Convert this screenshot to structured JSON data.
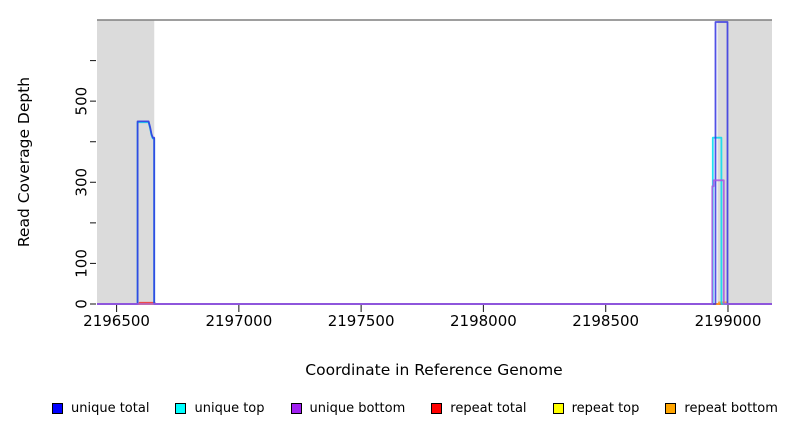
{
  "figure": {
    "background": "#ffffff",
    "band_color": "#DBDBDB",
    "border_color": "#7F7F7F",
    "tick_color": "#262626"
  },
  "chart_data": {
    "type": "line",
    "step": true,
    "title": "",
    "xlabel": "Coordinate in Reference Genome",
    "ylabel": "Read Coverage Depth",
    "xlim": [
      2196420,
      2199180
    ],
    "ylim": [
      0,
      700
    ],
    "grid": false,
    "x_ticks": [
      {
        "value": 2196500,
        "label": "2196500"
      },
      {
        "value": 2197000,
        "label": "2197000"
      },
      {
        "value": 2197500,
        "label": "2197500"
      },
      {
        "value": 2198000,
        "label": "2198000"
      },
      {
        "value": 2198500,
        "label": "2198500"
      },
      {
        "value": 2199000,
        "label": "2199000"
      }
    ],
    "y_ticks": [
      {
        "value": 0,
        "label": "0"
      },
      {
        "value": 100,
        "label": "100"
      },
      {
        "value": 200,
        "label": ""
      },
      {
        "value": 300,
        "label": "300"
      },
      {
        "value": 400,
        "label": ""
      },
      {
        "value": 500,
        "label": "500"
      },
      {
        "value": 600,
        "label": ""
      }
    ],
    "shaded_regions": [
      {
        "from": 2196420,
        "to": 2196654
      },
      {
        "from": 2198957,
        "to": 2199180
      }
    ],
    "series": [
      {
        "name": "repeat top",
        "color": "#F0F000",
        "points": [
          [
            2196420,
            0
          ],
          [
            2199180,
            0
          ]
        ]
      },
      {
        "name": "repeat total",
        "color": "#F03030",
        "points": [
          [
            2196420,
            0
          ],
          [
            2196594,
            0
          ],
          [
            2196594,
            3
          ],
          [
            2196656,
            3
          ],
          [
            2196656,
            0
          ],
          [
            2199180,
            0
          ]
        ]
      },
      {
        "name": "repeat bottom",
        "color": "#FFA020",
        "points": [
          [
            2196420,
            0
          ],
          [
            2198963,
            0
          ],
          [
            2198963,
            4
          ],
          [
            2198996,
            4
          ],
          [
            2198996,
            0
          ],
          [
            2199180,
            0
          ]
        ]
      },
      {
        "name": "unique top",
        "color": "#00DCEE",
        "points": [
          [
            2196420,
            0
          ],
          [
            2196586,
            0
          ],
          [
            2196586,
            448
          ],
          [
            2196631,
            448
          ],
          [
            2196637,
            433
          ],
          [
            2196643,
            416
          ],
          [
            2196648,
            408
          ],
          [
            2196654,
            408
          ],
          [
            2196654,
            0
          ],
          [
            2198938,
            0
          ],
          [
            2198938,
            410
          ],
          [
            2198973,
            410
          ],
          [
            2198973,
            0
          ],
          [
            2199180,
            0
          ]
        ]
      },
      {
        "name": "unique total",
        "color": "#3333E0",
        "points": [
          [
            2196420,
            0
          ],
          [
            2196586,
            0
          ],
          [
            2196586,
            450
          ],
          [
            2196631,
            450
          ],
          [
            2196637,
            436
          ],
          [
            2196643,
            419
          ],
          [
            2196648,
            410
          ],
          [
            2196654,
            410
          ],
          [
            2196654,
            0
          ],
          [
            2198949,
            0
          ],
          [
            2198949,
            695
          ],
          [
            2198998,
            695
          ],
          [
            2198998,
            0
          ],
          [
            2199180,
            0
          ]
        ]
      },
      {
        "name": "unique bottom",
        "color": "#AA55E0",
        "points": [
          [
            2196420,
            0
          ],
          [
            2198936,
            0
          ],
          [
            2198936,
            290
          ],
          [
            2198941,
            290
          ],
          [
            2198941,
            305
          ],
          [
            2198983,
            305
          ],
          [
            2198983,
            0
          ],
          [
            2199180,
            0
          ]
        ]
      }
    ],
    "legend": {
      "position": "bottom",
      "items": [
        {
          "label": "unique total",
          "color": "#0000FF"
        },
        {
          "label": "unique top",
          "color": "#00FFFF"
        },
        {
          "label": "unique bottom",
          "color": "#A020F0"
        },
        {
          "label": "repeat total",
          "color": "#FF0000"
        },
        {
          "label": "repeat top",
          "color": "#FFFF00"
        },
        {
          "label": "repeat bottom",
          "color": "#FFA500"
        }
      ]
    }
  }
}
